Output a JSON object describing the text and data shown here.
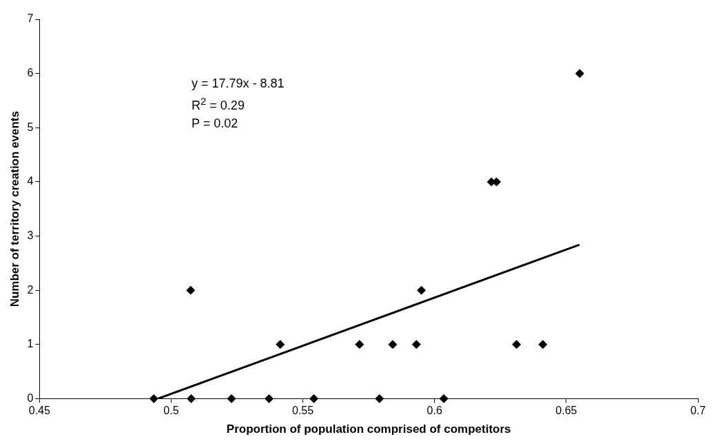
{
  "chart_data": {
    "type": "scatter",
    "xlabel": "Proportion of population comprised of competitors",
    "ylabel": "Number of territory creation events",
    "xlim": [
      0.45,
      0.7
    ],
    "xticks": [
      0.45,
      0.5,
      0.55,
      0.6,
      0.65,
      0.7
    ],
    "ylim": [
      0,
      7
    ],
    "yticks": [
      0,
      1,
      2,
      3,
      4,
      5,
      6,
      7
    ],
    "grid": false,
    "legend": false,
    "series": [
      {
        "marker": "diamond",
        "color": "#000000",
        "x": [
          0.4934,
          0.5076,
          0.5229,
          0.5372,
          0.5542,
          0.5791,
          0.6035,
          0.5414,
          0.5715,
          0.5841,
          0.5931,
          0.6311,
          0.6411,
          0.5074,
          0.595,
          0.6216,
          0.6235,
          0.6551
        ],
        "values": [
          0,
          0,
          0,
          0,
          0,
          0,
          0,
          1,
          1,
          1,
          1,
          1,
          1,
          2,
          2,
          4,
          4,
          6
        ]
      },
      {
        "type": "line",
        "marker": "none",
        "color": "#000000",
        "x": [
          0.495,
          0.655
        ],
        "values": [
          0,
          2.84
        ]
      }
    ],
    "annotations": [
      "y = 17.79x - 8.81",
      "R$^{2}$ = 0.29",
      "P = 0.02"
    ]
  }
}
